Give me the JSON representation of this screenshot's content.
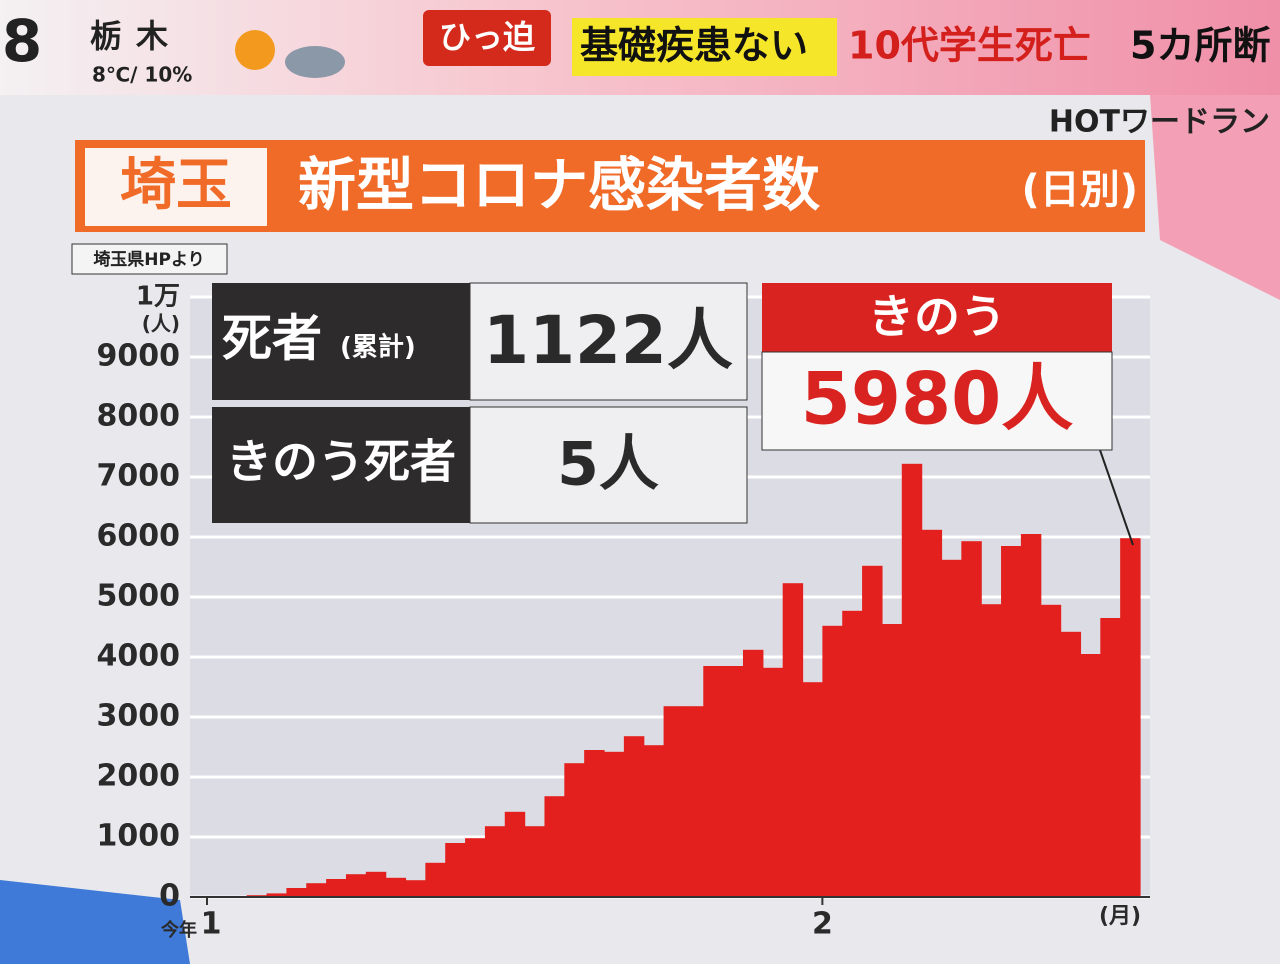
{
  "header": {
    "channel": "8",
    "region": "栃木",
    "weather": "8℃/ 10%",
    "badge": "ひっ迫",
    "headline_1": "基礎疾患ない",
    "headline_2": "10代学生死亡",
    "headline_3": "5カ所断",
    "hot_word": "HOTワードラン"
  },
  "panel": {
    "prefecture": "埼玉",
    "title": "新型コロナ感染者数",
    "title_suffix": "(日別)",
    "source": "埼玉県HPより",
    "boxes": [
      {
        "label": "死者",
        "label_suffix": "(累計)",
        "value": "1122人"
      },
      {
        "label": "きのう死者",
        "value": "5人"
      }
    ],
    "callout": {
      "title": "きのう",
      "text": "5980人"
    }
  },
  "chart_data": {
    "type": "bar",
    "color": "#e3201e",
    "grid": true,
    "categories": [
      "1",
      null,
      null,
      null,
      null,
      null,
      null,
      null,
      null,
      null,
      null,
      null,
      null,
      null,
      null,
      null,
      null,
      null,
      null,
      null,
      null,
      null,
      null,
      null,
      null,
      null,
      null,
      null,
      null,
      null,
      null,
      "2",
      null,
      null,
      null,
      null,
      null,
      null,
      null,
      null,
      null,
      null,
      null,
      null,
      null,
      null,
      null
    ],
    "x_prefix": "今年",
    "x_unit": "(月)",
    "y_unit": "(人)",
    "values": [
      10,
      15,
      30,
      60,
      150,
      230,
      300,
      380,
      420,
      320,
      280,
      570,
      900,
      980,
      1180,
      1420,
      1180,
      1680,
      2230,
      2450,
      2420,
      2680,
      2530,
      3180,
      3180,
      3850,
      3850,
      4120,
      3820,
      5230,
      3580,
      4520,
      4770,
      5520,
      4550,
      7220,
      6120,
      5620,
      5930,
      4880,
      5850,
      6050,
      4870,
      4420,
      4050,
      4650,
      5980
    ],
    "ylim": [
      0,
      10000
    ],
    "yticks": [
      0,
      1000,
      2000,
      3000,
      4000,
      5000,
      6000,
      7000,
      8000,
      9000,
      {
        "value": 10000,
        "label": "1万"
      }
    ]
  }
}
